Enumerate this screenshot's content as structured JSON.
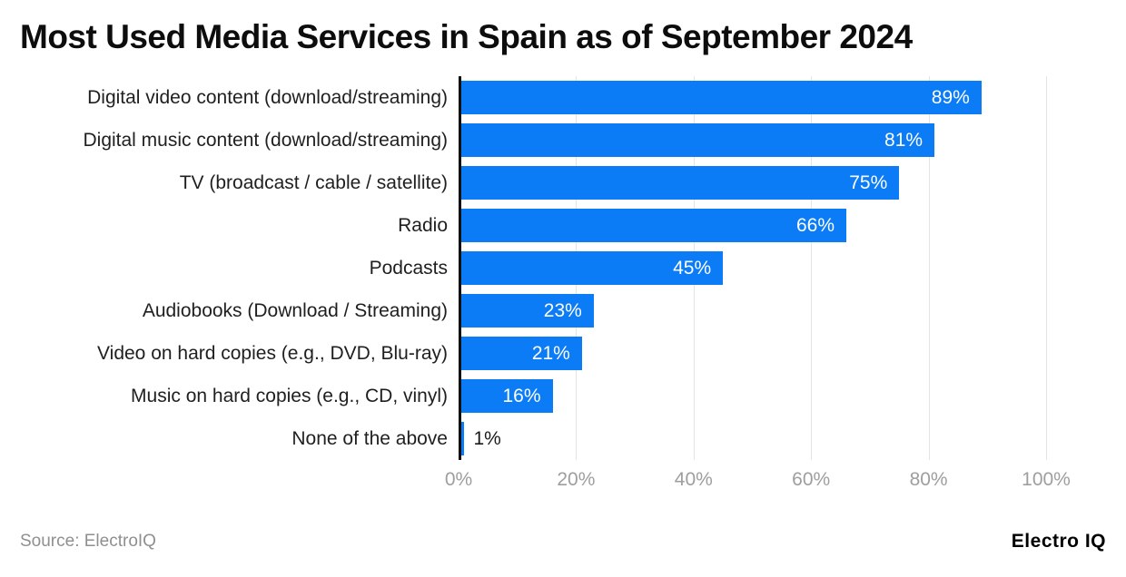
{
  "title": "Most Used Media Services in Spain as of September 2024",
  "footer": {
    "source": "Source: ElectroIQ",
    "brand": "Electro IQ"
  },
  "colors": {
    "bar": "#0b7cf5",
    "gridline": "#e4e4e4",
    "axis_line": "#111111",
    "tick_text": "#9e9e9e",
    "value_inside": "#ffffff",
    "value_outside": "#1a1a1a"
  },
  "chart_data": {
    "type": "bar",
    "orientation": "horizontal",
    "title": "Most Used Media Services in Spain as of September 2024",
    "categories": [
      "Digital video content (download/streaming)",
      "Digital music content (download/streaming)",
      "TV (broadcast / cable / satellite)",
      "Radio",
      "Podcasts",
      "Audiobooks (Download / Streaming)",
      "Video on hard copies (e.g., DVD, Blu-ray)",
      "Music on hard copies (e.g., CD, vinyl)",
      "None of the above"
    ],
    "values": [
      89,
      81,
      75,
      66,
      45,
      23,
      21,
      16,
      1
    ],
    "value_labels": [
      "89%",
      "81%",
      "75%",
      "66%",
      "45%",
      "23%",
      "21%",
      "16%",
      "1%"
    ],
    "xlabel": "",
    "ylabel": "",
    "x_ticks": [
      0,
      20,
      40,
      60,
      80,
      100
    ],
    "x_tick_labels": [
      "0%",
      "20%",
      "40%",
      "60%",
      "80%",
      "100%"
    ],
    "xlim": [
      0,
      100
    ],
    "grid": true,
    "legend": false
  }
}
